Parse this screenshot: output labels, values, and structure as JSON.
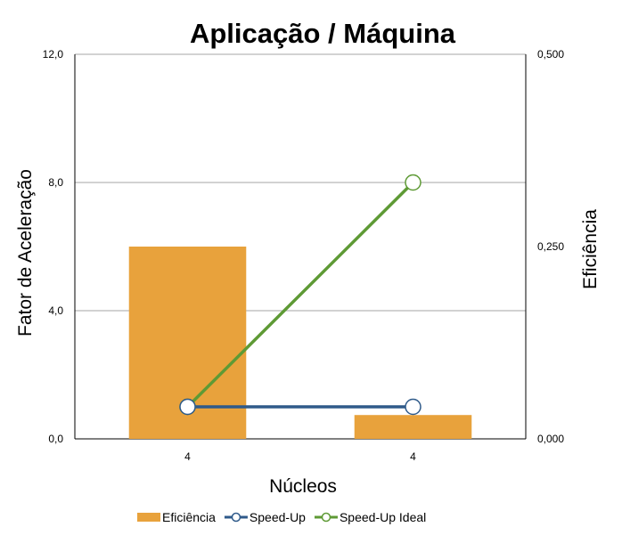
{
  "chart_data": {
    "type": "bar+line",
    "title": "Aplicação / Máquina",
    "xlabel": "Núcleos",
    "ylabel_left": "Fator de Aceleração",
    "ylabel_right": "Eficiência",
    "categories": [
      "4",
      "4"
    ],
    "y_left": {
      "min": 0,
      "max": 12,
      "ticks": [
        "0,0",
        "4,0",
        "8,0",
        "12,0"
      ],
      "tick_values": [
        0,
        4,
        8,
        12
      ]
    },
    "y_right": {
      "min": 0,
      "max": 0.5,
      "ticks": [
        "0,000",
        "0,250",
        "0,500"
      ],
      "tick_values": [
        0,
        0.25,
        0.5
      ]
    },
    "series": [
      {
        "name": "Eficiência",
        "type": "bar",
        "axis": "right",
        "color": "#E8A23C",
        "values": [
          0.25,
          0.031
        ]
      },
      {
        "name": "Speed-Up",
        "type": "line",
        "axis": "left",
        "color": "#2F5A8A",
        "values": [
          1.0,
          1.0
        ]
      },
      {
        "name": "Speed-Up Ideal",
        "type": "line",
        "axis": "left",
        "color": "#5E9A35",
        "values": [
          1.0,
          8.0
        ]
      }
    ],
    "grid": true,
    "legend": "bottom"
  }
}
